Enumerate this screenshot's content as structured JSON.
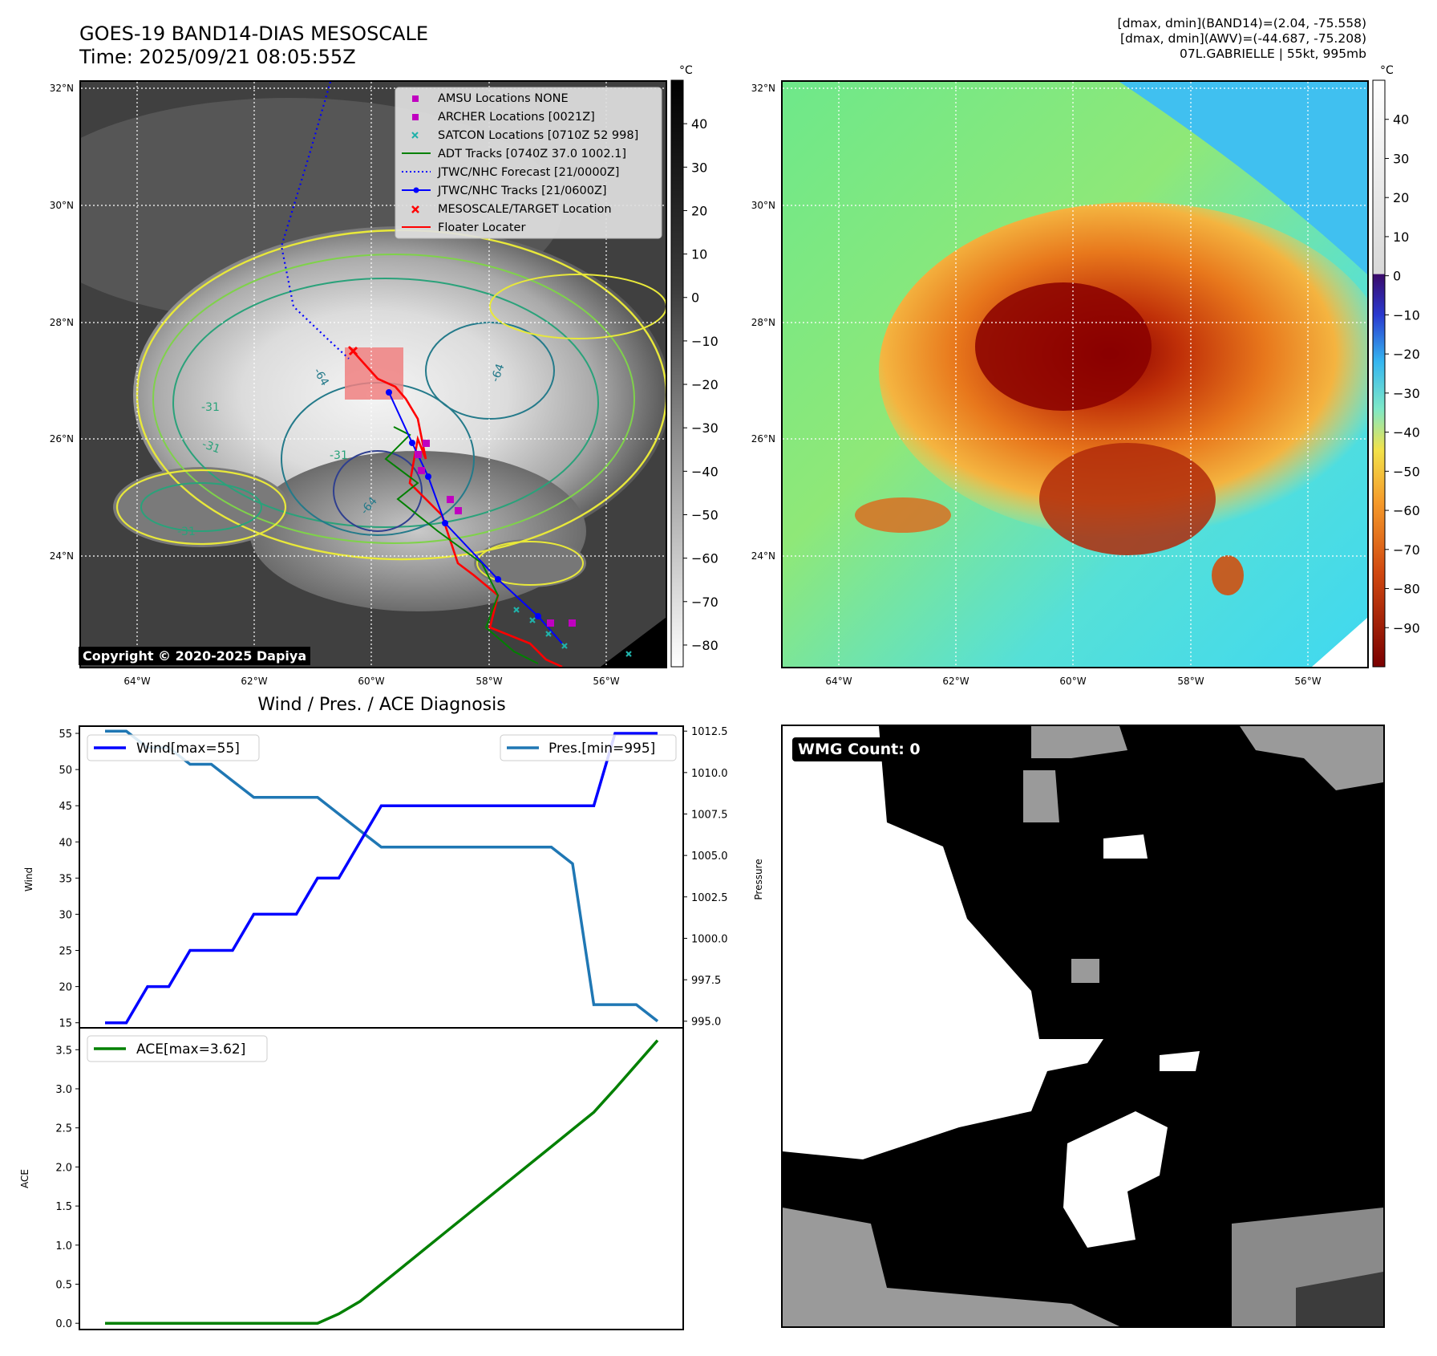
{
  "header": {
    "title_line1": "GOES-19 BAND14-DIAS MESOSCALE",
    "title_line2": "Time: 2025/09/21 08:05:55Z",
    "dmax_band14": "[dmax, dmin](BAND14)=(2.04, -75.558)",
    "dmax_awv": "[dmax, dmin](AWV)=(-44.687, -75.208)",
    "storm_info": "07L.GABRIELLE | 55kt, 995mb"
  },
  "copyright": "Copyright © 2020-2025 Dapiya",
  "map_axes": {
    "lat_labels": [
      "32°N",
      "30°N",
      "28°N",
      "26°N",
      "24°N"
    ],
    "lon_labels": [
      "64°W",
      "62°W",
      "60°W",
      "58°W",
      "56°W"
    ],
    "lat_values": [
      32,
      30,
      28,
      26,
      24
    ],
    "lon_values": [
      -64,
      -62,
      -60,
      -58,
      -56
    ]
  },
  "ir_colorbar": {
    "unit": "°C",
    "ticks": [
      "40",
      "30",
      "20",
      "10",
      "0",
      "−10",
      "−20",
      "−30",
      "−40",
      "−50",
      "−60",
      "−70",
      "−80"
    ],
    "values": [
      40,
      30,
      20,
      10,
      0,
      -10,
      -20,
      -30,
      -40,
      -50,
      -60,
      -70,
      -80
    ],
    "range": [
      50,
      -85
    ]
  },
  "awv_colorbar": {
    "unit": "°C",
    "ticks": [
      "40",
      "30",
      "20",
      "10",
      "0",
      "−10",
      "−20",
      "−30",
      "−40",
      "−50",
      "−60",
      "−70",
      "−80",
      "−90"
    ],
    "values": [
      40,
      30,
      20,
      10,
      0,
      -10,
      -20,
      -30,
      -40,
      -50,
      -60,
      -70,
      -80,
      -90
    ],
    "range": [
      50,
      -100
    ]
  },
  "legend": {
    "entries": [
      {
        "label": "AMSU Locations NONE",
        "color": "#c000c0",
        "marker": "square"
      },
      {
        "label": "ARCHER Locations [0021Z]",
        "color": "#c000c0",
        "marker": "square"
      },
      {
        "label": "SATCON Locations [0710Z 52 998]",
        "color": "#20b2aa",
        "marker": "x"
      },
      {
        "label": "ADT Tracks [0740Z 37.0 1002.1]",
        "color": "#008000",
        "marker": "line"
      },
      {
        "label": "JTWC/NHC Forecast [21/0000Z]",
        "color": "#0000ff",
        "marker": "dotted"
      },
      {
        "label": "JTWC/NHC Tracks [21/0600Z]",
        "color": "#0000ff",
        "marker": "line-dot"
      },
      {
        "label": "MESOSCALE/TARGET Location",
        "color": "#ff0000",
        "marker": "x"
      },
      {
        "label": "Floater Locater",
        "color": "#ff0000",
        "marker": "line"
      }
    ]
  },
  "contour_labels": [
    "-64",
    "-64",
    "-31",
    "-31",
    "-31",
    "-64",
    "-31"
  ],
  "diagnosis": {
    "title": "Wind / Pres. / ACE Diagnosis",
    "wind_label": "Wind",
    "pressure_label": "Pressure",
    "ace_label": "ACE",
    "wind_legend": "Wind[max=55]",
    "pres_legend": "Pres.[min=995]",
    "ace_legend": "ACE[max=3.62]",
    "wind_ticks": [
      "55",
      "50",
      "45",
      "40",
      "35",
      "30",
      "25",
      "20",
      "15"
    ],
    "pres_ticks": [
      "1012.5",
      "1010.0",
      "1007.5",
      "1005.0",
      "1002.5",
      "1000.0",
      "997.5",
      "995.0"
    ],
    "ace_ticks": [
      "3.5",
      "3.0",
      "2.5",
      "2.0",
      "1.5",
      "1.0",
      "0.5",
      "0.0"
    ]
  },
  "wmg": {
    "badge": "WMG Count: 0"
  },
  "chart_data": [
    {
      "type": "line",
      "title": "Wind / Pres. / ACE Diagnosis",
      "xlabel": "",
      "ylabel": "Wind",
      "y2label": "Pressure",
      "x": [
        0,
        1,
        2,
        3,
        4,
        5,
        6,
        7,
        8,
        9,
        10,
        11,
        12,
        13,
        14,
        15,
        16,
        17,
        18,
        19,
        20,
        21,
        22,
        23,
        24,
        25,
        26
      ],
      "ylim": [
        14.3,
        56.0
      ],
      "y2lim": [
        994.6,
        1012.8
      ],
      "series": [
        {
          "name": "Wind[max=55]",
          "axis": "left",
          "color": "#0000ff",
          "values": [
            15,
            15,
            20,
            20,
            25,
            25,
            25,
            30,
            30,
            30,
            35,
            35,
            40,
            45,
            45,
            45,
            45,
            45,
            45,
            45,
            45,
            45,
            45,
            45,
            55,
            55,
            55
          ]
        },
        {
          "name": "Pres.[min=995]",
          "axis": "right",
          "color": "#1f77b4",
          "values": [
            1012.5,
            1012.5,
            1011.5,
            1011.5,
            1010.5,
            1010.5,
            1009.5,
            1008.5,
            1008.5,
            1008.5,
            1008.5,
            1007.5,
            1006.5,
            1005.5,
            1005.5,
            1005.5,
            1005.5,
            1005.5,
            1005.5,
            1005.5,
            1005.5,
            1005.5,
            1004.5,
            996.0,
            996.0,
            996.0,
            995.0
          ]
        }
      ]
    },
    {
      "type": "line",
      "xlabel": "",
      "ylabel": "ACE",
      "ylim": [
        -0.08,
        3.78
      ],
      "x": [
        0,
        1,
        2,
        3,
        4,
        5,
        6,
        7,
        8,
        9,
        10,
        11,
        12,
        13,
        14,
        15,
        16,
        17,
        18,
        19,
        20,
        21,
        22,
        23,
        24,
        25,
        26
      ],
      "series": [
        {
          "name": "ACE[max=3.62]",
          "color": "#008000",
          "values": [
            0,
            0,
            0,
            0,
            0,
            0,
            0,
            0,
            0,
            0,
            0,
            0.12,
            0.28,
            0.5,
            0.72,
            0.94,
            1.16,
            1.38,
            1.6,
            1.82,
            2.04,
            2.26,
            2.48,
            2.7,
            3.0,
            3.31,
            3.62
          ]
        }
      ]
    }
  ]
}
